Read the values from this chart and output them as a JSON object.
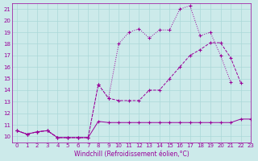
{
  "xlabel": "Windchill (Refroidissement éolien,°C)",
  "xlim": [
    -0.5,
    23
  ],
  "ylim": [
    9.5,
    21.5
  ],
  "xticks": [
    0,
    1,
    2,
    3,
    4,
    5,
    6,
    7,
    8,
    9,
    10,
    11,
    12,
    13,
    14,
    15,
    16,
    17,
    18,
    19,
    20,
    21,
    22,
    23
  ],
  "yticks": [
    10,
    11,
    12,
    13,
    14,
    15,
    16,
    17,
    18,
    19,
    20,
    21
  ],
  "bg_color": "#cceaea",
  "line_color": "#990099",
  "grid_color": "#aad8d8",
  "line1_x": [
    0,
    1,
    2,
    3,
    4,
    5,
    6,
    7,
    8,
    9,
    10,
    11,
    12,
    13,
    14,
    15,
    16,
    17,
    18,
    19,
    20,
    21,
    22,
    23
  ],
  "line1_y": [
    10.5,
    10.2,
    10.4,
    10.5,
    9.9,
    9.9,
    9.9,
    9.9,
    14.5,
    13.3,
    18.0,
    19.0,
    19.3,
    18.5,
    19.2,
    19.2,
    21.0,
    21.3,
    18.7,
    19.0,
    17.0,
    14.7,
    null,
    null
  ],
  "line1_style": "dotted",
  "line2_x": [
    0,
    1,
    2,
    3,
    4,
    5,
    6,
    7,
    8,
    9,
    10,
    11,
    12,
    13,
    14,
    15,
    16,
    17,
    18,
    19,
    20,
    21,
    22,
    23
  ],
  "line2_y": [
    10.5,
    10.2,
    10.4,
    10.5,
    9.9,
    9.9,
    9.9,
    9.9,
    14.5,
    13.3,
    13.1,
    13.1,
    13.1,
    14.0,
    14.0,
    15.0,
    16.0,
    17.0,
    17.5,
    18.1,
    18.1,
    16.8,
    14.6,
    null
  ],
  "line2_style": "dashed",
  "line3_x": [
    0,
    1,
    2,
    3,
    4,
    5,
    6,
    7,
    8,
    9,
    10,
    11,
    12,
    13,
    14,
    15,
    16,
    17,
    18,
    19,
    20,
    21,
    22,
    23
  ],
  "line3_y": [
    10.5,
    10.2,
    10.4,
    10.5,
    9.9,
    9.9,
    9.9,
    9.9,
    11.3,
    11.2,
    11.2,
    11.2,
    11.2,
    11.2,
    11.2,
    11.2,
    11.2,
    11.2,
    11.2,
    11.2,
    11.2,
    11.2,
    11.5,
    11.5
  ],
  "line3_style": "solid"
}
